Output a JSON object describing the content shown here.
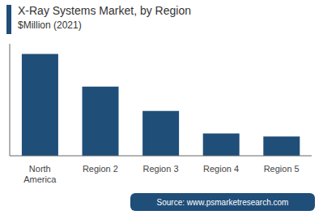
{
  "chart_data": {
    "type": "bar",
    "title": "X-Ray Systems Market, by Region",
    "subtitle": "$Million (2021)",
    "categories": [
      "North\nAmerica",
      "Region 2",
      "Region 3",
      "Region 4",
      "Region 5"
    ],
    "values": [
      100,
      68,
      44,
      22,
      19
    ],
    "color": "#1f4e79",
    "ylim": [
      0,
      110
    ],
    "grid": false,
    "tick_labels": "x",
    "annotations": [
      "Source: www.psmarketresearch.com"
    ]
  }
}
